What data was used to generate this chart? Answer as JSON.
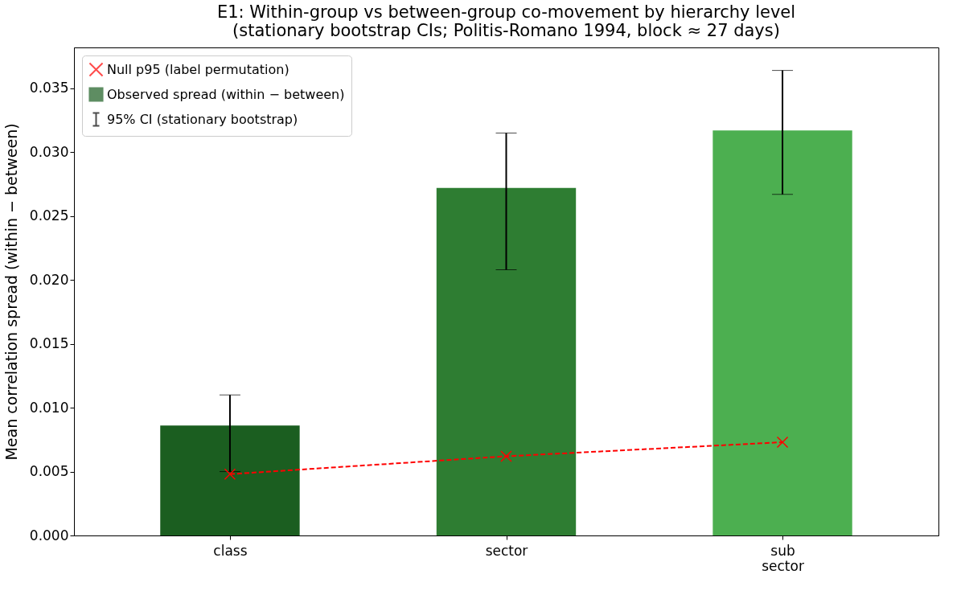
{
  "chart_data": {
    "type": "bar",
    "title": "E1: Within-group vs between-group co-movement by hierarchy level",
    "subtitle": "(stationary bootstrap CIs; Politis-Romano 1994, block ≈ 27 days)",
    "ylabel": "Mean correlation spread (within − between)",
    "categories": [
      "class",
      "sector",
      "sub\nsector"
    ],
    "series": [
      {
        "name": "Null p95 (label permutation)",
        "type": "line",
        "color": "#ff0000",
        "marker": "cross",
        "line_style": "dashed",
        "values": [
          0.0048,
          0.0062,
          0.0073
        ]
      },
      {
        "name": "Observed spread (within − between)",
        "type": "bar",
        "color": "#1b5e20",
        "colors": [
          "#1b5e20",
          "#2e7d32",
          "#4caf50"
        ],
        "values": [
          0.0086,
          0.0272,
          0.0317
        ],
        "errors": [
          [
            0.005,
            0.011
          ],
          [
            0.0208,
            0.0315
          ],
          [
            0.0267,
            0.0364
          ]
        ]
      }
    ],
    "annotations": [
      "95% CI (stationary bootstrap)"
    ],
    "ylim": [
      0,
      0.0382
    ],
    "yticks": [
      {
        "value": 0,
        "label": "0.000"
      },
      {
        "value": 0.005,
        "label": "0.005"
      },
      {
        "value": 0.01,
        "label": "0.010"
      },
      {
        "value": 0.015,
        "label": "0.015"
      },
      {
        "value": 0.02,
        "label": "0.020"
      },
      {
        "value": 0.025,
        "label": "0.025"
      },
      {
        "value": 0.03,
        "label": "0.030"
      },
      {
        "value": 0.035,
        "label": "0.035"
      }
    ],
    "grid": false,
    "legend": "top left"
  }
}
